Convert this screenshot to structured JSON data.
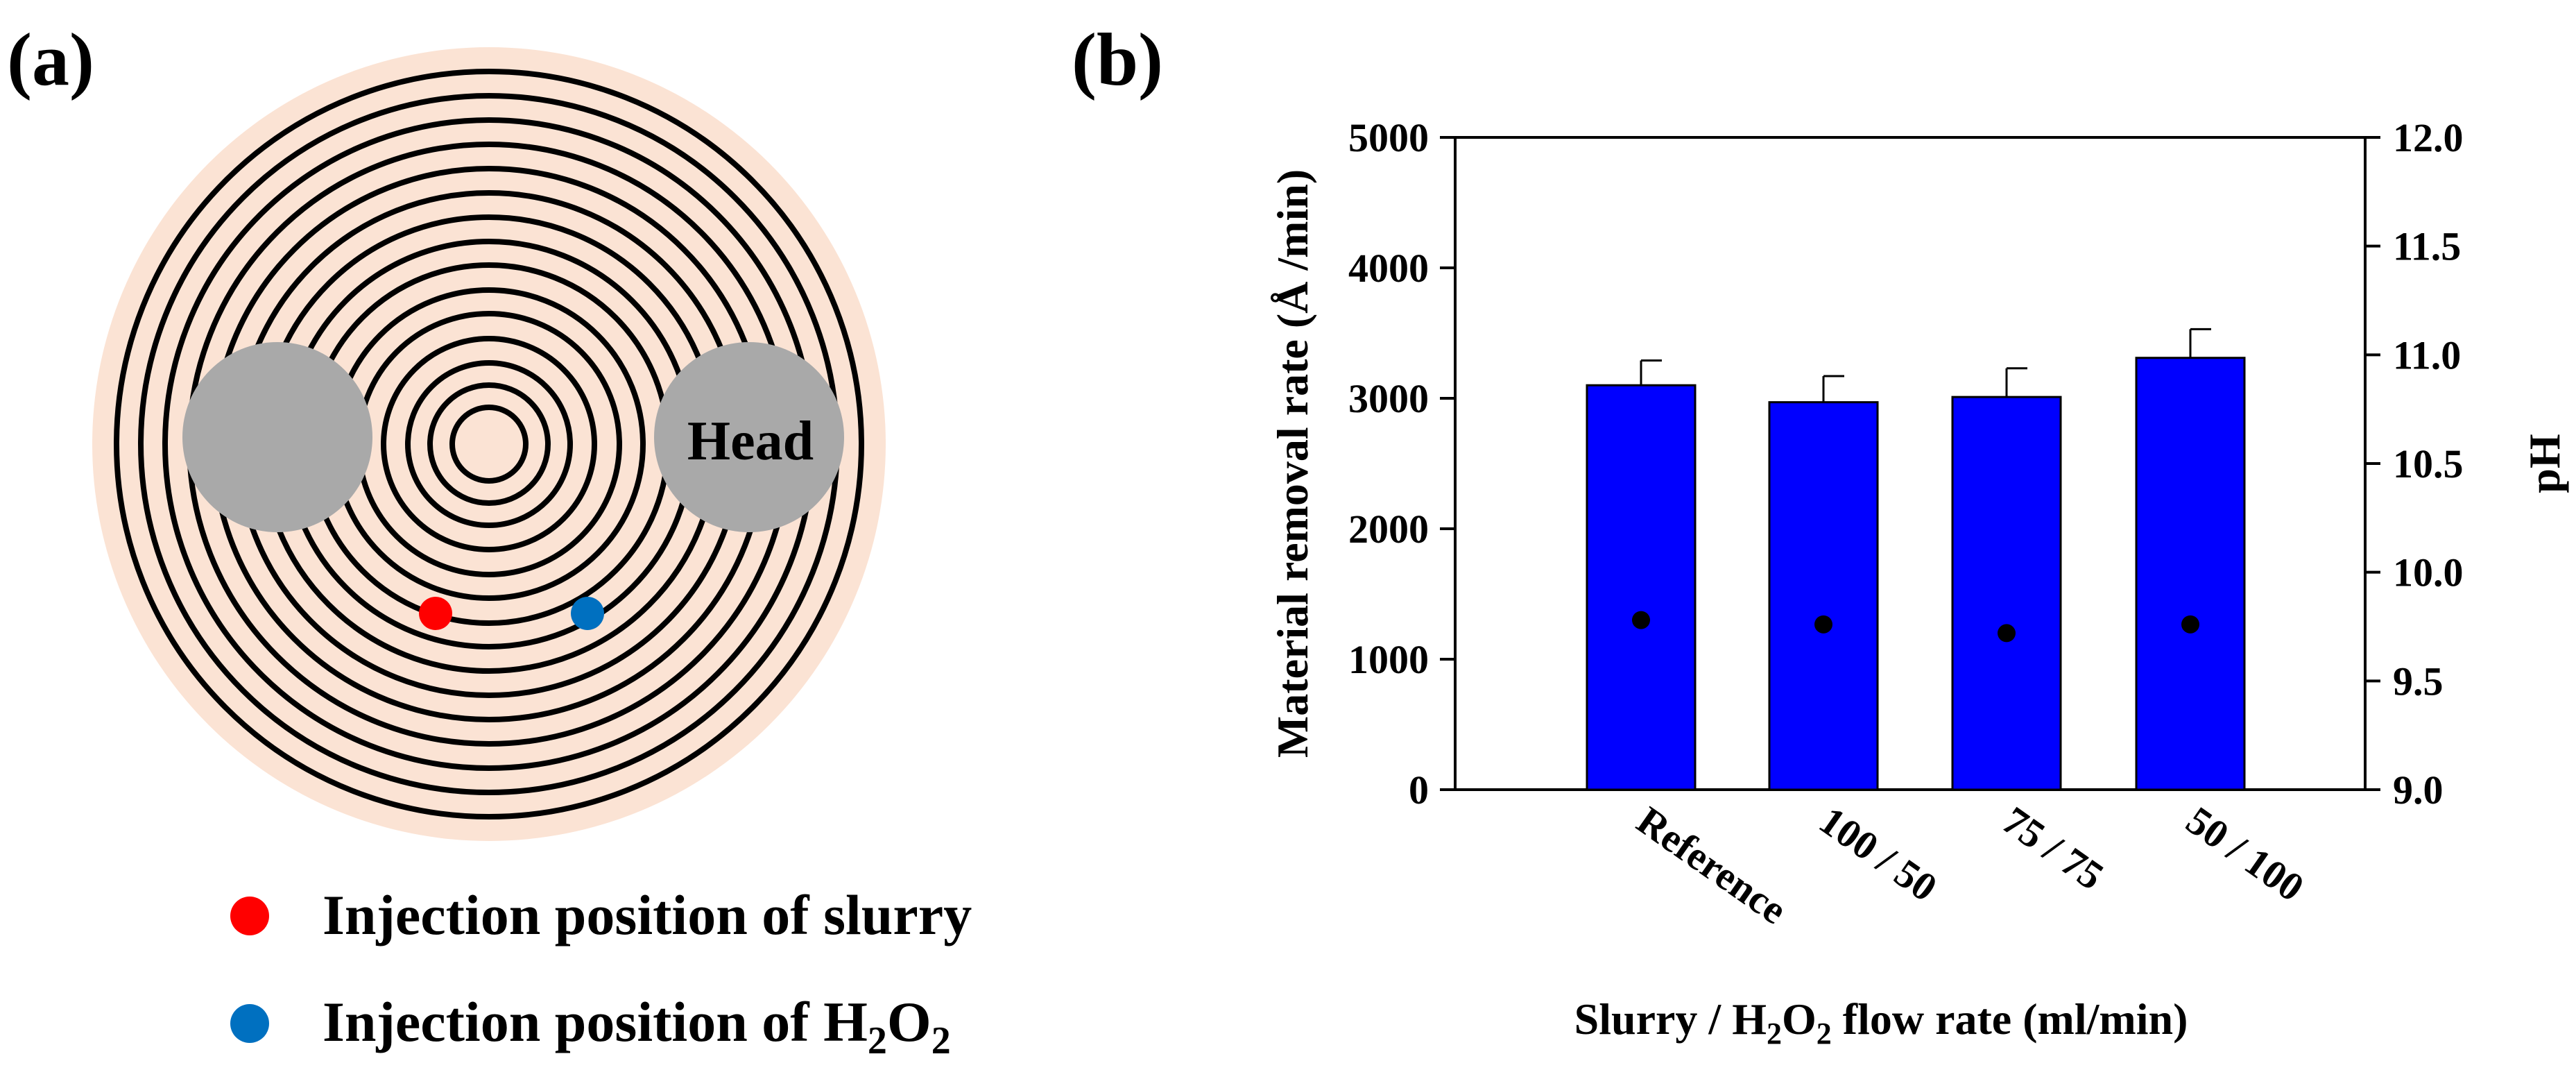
{
  "panel_a": {
    "label": "(a)",
    "head_label": "Head",
    "legend": [
      {
        "text": "Injection position of slurry",
        "color": "#ff0000"
      },
      {
        "text_prefix": "Injection position of H",
        "sub1": "2",
        "mid": "O",
        "sub2": "2",
        "color": "#0070c0"
      }
    ],
    "colors": {
      "pad": "#fbe3d4",
      "head": "#a9a9a9",
      "groove": "#000000"
    }
  },
  "chart_data": {
    "panel_label": "(b)",
    "type": "bar",
    "categories": [
      "Reference",
      "100 / 50",
      "75 / 75",
      "50 / 100"
    ],
    "series": [
      {
        "name": "Material removal rate",
        "axis": "left",
        "values": [
          3100,
          2970,
          3010,
          3310
        ],
        "errors": [
          190,
          200,
          220,
          220
        ],
        "color": "#0000ff"
      },
      {
        "name": "pH",
        "axis": "right",
        "type": "scatter",
        "values": [
          9.78,
          9.76,
          9.72,
          9.76
        ],
        "color": "#000000"
      }
    ],
    "ylabel": "Material removal rate (Å /min)",
    "y2label": "pH",
    "xlabel": {
      "prefix": "Slurry / H",
      "sub": "2",
      "suffix": "O",
      "sub2": "2",
      "tail": " flow rate (ml/min)"
    },
    "ylim": [
      0,
      5000
    ],
    "yticks": [
      "0",
      "1000",
      "2000",
      "3000",
      "4000",
      "5000"
    ],
    "y2lim": [
      9.0,
      12.0
    ],
    "y2ticks": [
      "9.0",
      "9.5",
      "10.0",
      "10.5",
      "11.0",
      "11.5",
      "12.0"
    ],
    "grid": false
  }
}
